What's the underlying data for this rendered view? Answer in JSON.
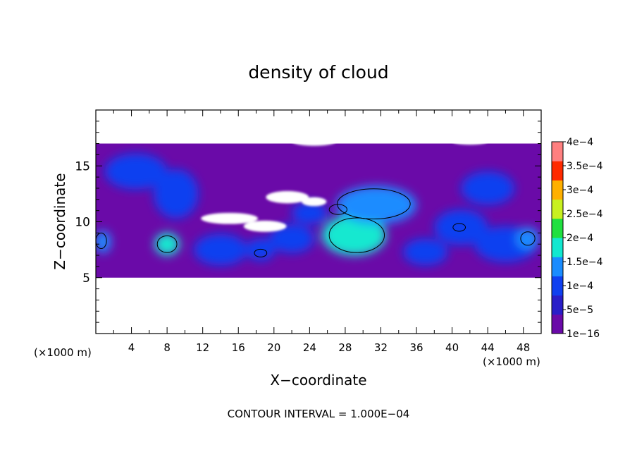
{
  "chart_data": {
    "type": "heatmap",
    "title": "density of cloud",
    "xlabel": "X−coordinate",
    "ylabel": "Z−coordinate",
    "x_unit_left": "(×1000 m)",
    "x_unit_right": "(×1000 m)",
    "footnote": "CONTOUR INTERVAL = 1.000E−04",
    "xlim": [
      0,
      50
    ],
    "ylim": [
      0,
      20
    ],
    "xticks": [
      4,
      8,
      12,
      16,
      20,
      24,
      28,
      32,
      36,
      40,
      44,
      48
    ],
    "xtick_labels": [
      "4",
      "8",
      "12",
      "16",
      "20",
      "24",
      "28",
      "32",
      "36",
      "40",
      "44",
      "48"
    ],
    "yticks": [
      5,
      10,
      15
    ],
    "ytick_labels": [
      "5",
      "10",
      "15"
    ],
    "cloud_layer": {
      "z_bottom": 5,
      "z_top": 17
    },
    "contour_levels": [
      0.0001
    ],
    "colorbar": {
      "labels": [
        "1e−16",
        "5e−5",
        "1e−4",
        "1.5e−4",
        "2e−4",
        "2.5e−4",
        "3e−4",
        "3.5e−4",
        "4e−4"
      ],
      "values": [
        1e-16,
        5e-05,
        0.0001,
        0.00015,
        0.0002,
        0.00025,
        0.0003,
        0.00035,
        0.0004
      ],
      "colors": [
        "#6a0aa8",
        "#2a1ec8",
        "#1040f0",
        "#1a8cff",
        "#12e8d0",
        "#20e040",
        "#c8f020",
        "#ffb000",
        "#ff2a00",
        "#ff8080"
      ]
    },
    "blobs": [
      {
        "x": 29,
        "z": 8.8,
        "rx": 3.6,
        "rz": 1.8,
        "value": 0.00016
      },
      {
        "x": 31.5,
        "z": 11.5,
        "rx": 4.5,
        "rz": 1.7,
        "value": 0.00012
      },
      {
        "x": 8,
        "z": 8,
        "rx": 1.4,
        "rz": 1.0,
        "value": 0.00015
      },
      {
        "x": 0.8,
        "z": 8.2,
        "rx": 0.9,
        "rz": 1.0,
        "value": 0.00012
      },
      {
        "x": 9,
        "z": 12.5,
        "rx": 2.5,
        "rz": 2.2,
        "value": 6e-05
      },
      {
        "x": 4.5,
        "z": 14.5,
        "rx": 3.5,
        "rz": 1.6,
        "value": 5e-05
      },
      {
        "x": 46,
        "z": 8,
        "rx": 3.5,
        "rz": 1.6,
        "value": 8e-05
      },
      {
        "x": 41,
        "z": 9.5,
        "rx": 3.0,
        "rz": 1.6,
        "value": 7e-05
      },
      {
        "x": 48.5,
        "z": 8.5,
        "rx": 1.3,
        "rz": 1.0,
        "value": 0.0001
      },
      {
        "x": 18.5,
        "z": 7.5,
        "rx": 1.6,
        "rz": 1.0,
        "value": 9e-05
      },
      {
        "x": 14,
        "z": 7.5,
        "rx": 3.0,
        "rz": 1.4,
        "value": 7e-05
      },
      {
        "x": 22,
        "z": 8.5,
        "rx": 2.5,
        "rz": 1.3,
        "value": 7e-05
      },
      {
        "x": 37,
        "z": 7.3,
        "rx": 2.5,
        "rz": 1.2,
        "value": 6e-05
      },
      {
        "x": 44,
        "z": 13,
        "rx": 3.0,
        "rz": 1.5,
        "value": 5e-05
      },
      {
        "x": 24,
        "z": 10.8,
        "rx": 2.0,
        "rz": 1.0,
        "value": 8e-05
      }
    ],
    "contours": [
      {
        "x": 29.3,
        "z": 8.8,
        "rx": 3.1,
        "rz": 1.55
      },
      {
        "x": 31.2,
        "z": 11.6,
        "rx": 4.1,
        "rz": 1.35
      },
      {
        "x": 8,
        "z": 8,
        "rx": 1.1,
        "rz": 0.75
      },
      {
        "x": 0.6,
        "z": 8.3,
        "rx": 0.6,
        "rz": 0.7
      },
      {
        "x": 18.5,
        "z": 7.2,
        "rx": 0.7,
        "rz": 0.35
      },
      {
        "x": 48.5,
        "z": 8.5,
        "rx": 0.8,
        "rz": 0.6
      },
      {
        "x": 40.8,
        "z": 9.5,
        "rx": 0.7,
        "rz": 0.35
      },
      {
        "x": 27.2,
        "z": 11.1,
        "rx": 1.0,
        "rz": 0.45
      }
    ],
    "clear_gaps": [
      {
        "x": 15,
        "z": 10.3,
        "rx": 3.2,
        "rz": 0.5
      },
      {
        "x": 19,
        "z": 9.6,
        "rx": 2.4,
        "rz": 0.5
      },
      {
        "x": 21.5,
        "z": 12.2,
        "rx": 2.4,
        "rz": 0.55
      },
      {
        "x": 24.5,
        "z": 11.8,
        "rx": 1.4,
        "rz": 0.4
      },
      {
        "x": 42,
        "z": 17.2,
        "rx": 2.0,
        "rz": 0.3
      },
      {
        "x": 24.5,
        "z": 17.2,
        "rx": 2.5,
        "rz": 0.4
      }
    ]
  }
}
